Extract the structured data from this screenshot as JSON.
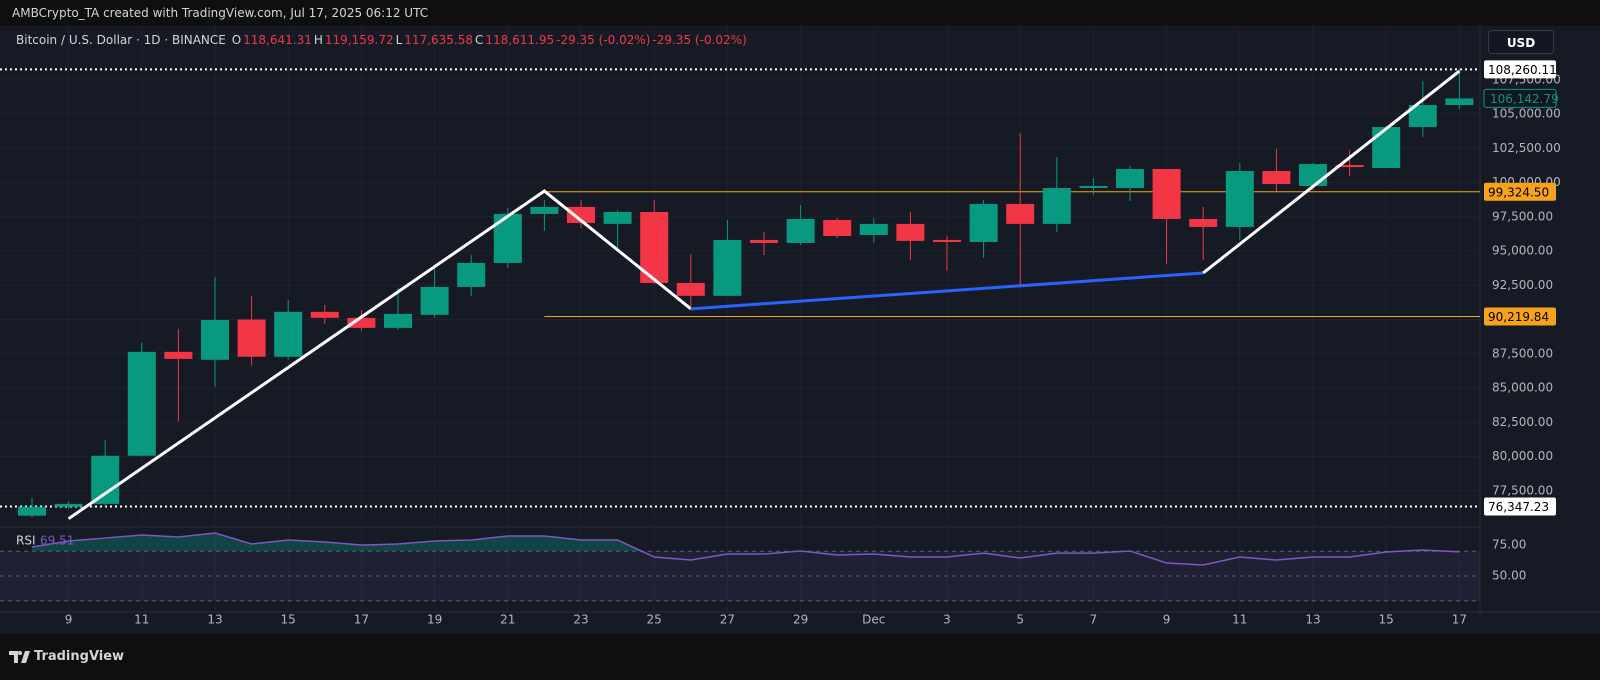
{
  "header": {
    "watermark": "AMBCrypto_TA created with TradingView.com, Jul 17, 2025 06:12 UTC"
  },
  "legend": {
    "symbol": "Bitcoin / U.S. Dollar · 1D · BINANCE",
    "color": "#f23645",
    "ohlc": [
      {
        "key": "O",
        "value": "118,641.31"
      },
      {
        "key": "H",
        "value": "119,159.72"
      },
      {
        "key": "L",
        "value": "117,635.58"
      },
      {
        "key": "C",
        "value": "118,611.95"
      }
    ],
    "changes": [
      "-29.35 (-0.02%)",
      "-29.35 (-0.02%)"
    ]
  },
  "currency": "USD",
  "footer": "TradingView",
  "chart_data": [
    {
      "type": "candlestick",
      "up_color": "#089981",
      "down_color": "#f23645",
      "categories": [
        null,
        "9",
        null,
        "11",
        null,
        "13",
        null,
        "15",
        null,
        "17",
        null,
        "19",
        null,
        "21",
        null,
        "23",
        null,
        "25",
        null,
        "27",
        null,
        "29",
        null,
        "Dec",
        null,
        "3",
        null,
        "5",
        null,
        "7",
        null,
        "9",
        null,
        "11",
        null,
        "13",
        null,
        "15",
        null,
        "17"
      ],
      "open": [
        75680,
        76330,
        76540,
        80055,
        87640,
        87060,
        90000,
        87280,
        90560,
        90120,
        89390,
        90340,
        92380,
        94130,
        97710,
        98220,
        96980,
        97850,
        92670,
        91730,
        95810,
        95590,
        97270,
        96170,
        96980,
        95810,
        95660,
        98440,
        96980,
        99600,
        99600,
        100990,
        97340,
        96760,
        100840,
        99750,
        101280,
        101060,
        104050,
        105660
      ],
      "high": [
        76990,
        76700,
        81220,
        88300,
        89320,
        93110,
        91730,
        91430,
        91070,
        90700,
        92310,
        93770,
        94720,
        98140,
        98730,
        98730,
        98000,
        98730,
        94790,
        97270,
        96390,
        98360,
        97410,
        97410,
        97850,
        96100,
        98730,
        103610,
        101860,
        100330,
        101210,
        101000,
        98220,
        101430,
        102450,
        101430,
        102370,
        104120,
        107410,
        108260.11
      ],
      "low": [
        75530,
        76200,
        76330,
        80000,
        82600,
        85090,
        86620,
        87060,
        89680,
        89170,
        89250,
        90120,
        91730,
        93770,
        96470,
        96680,
        95080,
        92600,
        90700,
        91730,
        94710,
        95440,
        95950,
        95590,
        94350,
        93550,
        94500,
        92530,
        96390,
        99090,
        98650,
        94060,
        94350,
        95810,
        99380,
        99460,
        100480,
        101060,
        103320,
        105360
      ],
      "close": [
        76330,
        76540,
        80055,
        87640,
        87130,
        89970,
        87280,
        90560,
        90120,
        89390,
        90410,
        92380,
        94130,
        97710,
        98220,
        97050,
        97850,
        92670,
        91730,
        95810,
        95590,
        97340,
        96100,
        96980,
        95740,
        95660,
        98440,
        96980,
        99600,
        99750,
        100990,
        97340,
        96760,
        100840,
        99890,
        101350,
        101130,
        104050,
        105660,
        106142.79
      ],
      "last_price_label": "106,142.79",
      "ylim": [
        75000,
        108800
      ],
      "yticks": [
        {
          "value": 77500,
          "label": "77,500.00"
        },
        {
          "value": 80000,
          "label": "80,000.00"
        },
        {
          "value": 82500,
          "label": "82,500.00"
        },
        {
          "value": 85000,
          "label": "85,000.00"
        },
        {
          "value": 87500,
          "label": "87,500.00"
        },
        {
          "value": 90000,
          "label": "90,000.00"
        },
        {
          "value": 92500,
          "label": "92,500.00"
        },
        {
          "value": 95000,
          "label": "95,000.00"
        },
        {
          "value": 97500,
          "label": "97,500.00"
        },
        {
          "value": 100000,
          "label": "100,000.00"
        },
        {
          "value": 102500,
          "label": "102,500.00"
        },
        {
          "value": 105000,
          "label": "105,000.00"
        },
        {
          "value": 107500,
          "label": "107,500.00"
        }
      ],
      "price_lines": [
        {
          "value": 108260.11,
          "label": "108,260.11",
          "color": "#ffffff",
          "style": "dotted"
        },
        {
          "value": 76347.23,
          "label": "76,347.23",
          "color": "#ffffff",
          "style": "dotted"
        },
        {
          "value": 99324.5,
          "label": "99,324.50",
          "color": "#f7a21b",
          "style": "solid",
          "from": 14
        },
        {
          "value": 90219.84,
          "label": "90,219.84",
          "color": "#f7a21b",
          "style": "solid",
          "from": 14
        }
      ],
      "trendlines": [
        {
          "color": "#ffffff",
          "points": [
            [
              1,
              75460
            ],
            [
              14,
              99380
            ],
            [
              18,
              90780
            ]
          ]
        },
        {
          "color": "#2962ff",
          "points": [
            [
              18,
              90780
            ],
            [
              32,
              93400
            ]
          ]
        },
        {
          "color": "#ffffff",
          "points": [
            [
              32,
              93400
            ],
            [
              39,
              108140
            ]
          ]
        }
      ]
    },
    {
      "type": "line",
      "title": "RSI",
      "color": "#7e57c2",
      "fill_color": "#089981",
      "values": [
        73.4,
        78.2,
        80.6,
        83.1,
        81.5,
        84.7,
        75.8,
        79.0,
        77.4,
        75.0,
        75.8,
        78.2,
        79.0,
        82.3,
        82.3,
        79.0,
        79.0,
        65.3,
        62.9,
        67.7,
        67.7,
        70.2,
        66.9,
        67.7,
        65.3,
        65.3,
        68.5,
        64.5,
        68.5,
        68.5,
        70.2,
        60.5,
        58.9,
        65.3,
        62.9,
        65.3,
        65.3,
        69.4,
        71.0,
        69.51
      ],
      "ylim": [
        22.6,
        87.1
      ],
      "yticks": [
        {
          "value": 75,
          "label": "75.00"
        },
        {
          "value": 50,
          "label": "50.00"
        }
      ],
      "levels": [
        70,
        50,
        30
      ]
    }
  ]
}
